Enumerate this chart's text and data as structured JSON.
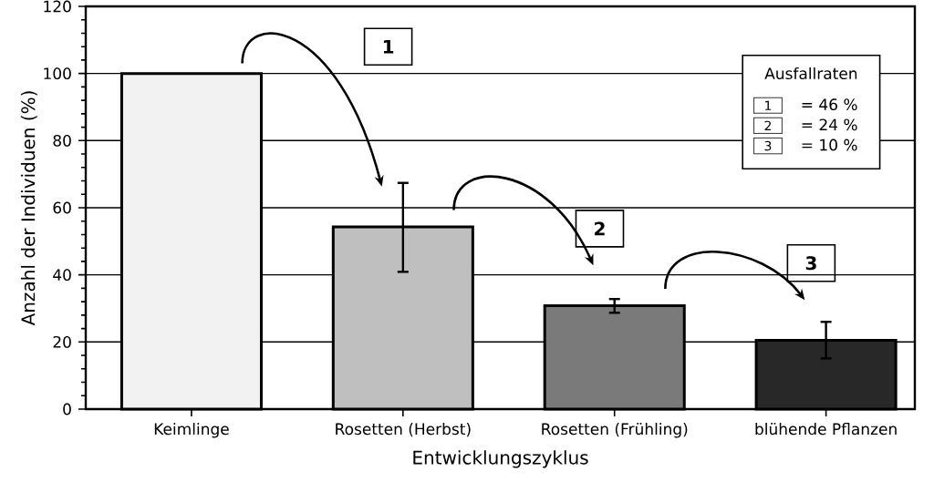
{
  "chart_data": {
    "type": "bar",
    "xlabel": "Entwicklungszyklus",
    "ylabel": "Anzahl der Individuen (%)",
    "categories": [
      "Keimlinge",
      "Rosetten (Herbst)",
      "Rosetten (Frühling)",
      "blühende Pflanzen"
    ],
    "values": [
      100,
      54.3,
      30.8,
      20.5
    ],
    "colors": [
      "#f2f2f2",
      "#bfbfbf",
      "#7a7a7a",
      "#282828"
    ],
    "errors": [
      null,
      [
        40.9,
        67.4
      ],
      [
        28.7,
        32.8
      ],
      [
        15.1,
        26.0
      ]
    ],
    "ylim": [
      0,
      120
    ],
    "yticks": [
      0,
      20,
      40,
      60,
      80,
      100,
      120
    ],
    "grid": "y",
    "annotations": [
      "1",
      "2",
      "3",
      "Ausfallraten",
      "1",
      "= 46 %",
      "2",
      "= 24 %",
      "3",
      "= 10 %"
    ]
  }
}
